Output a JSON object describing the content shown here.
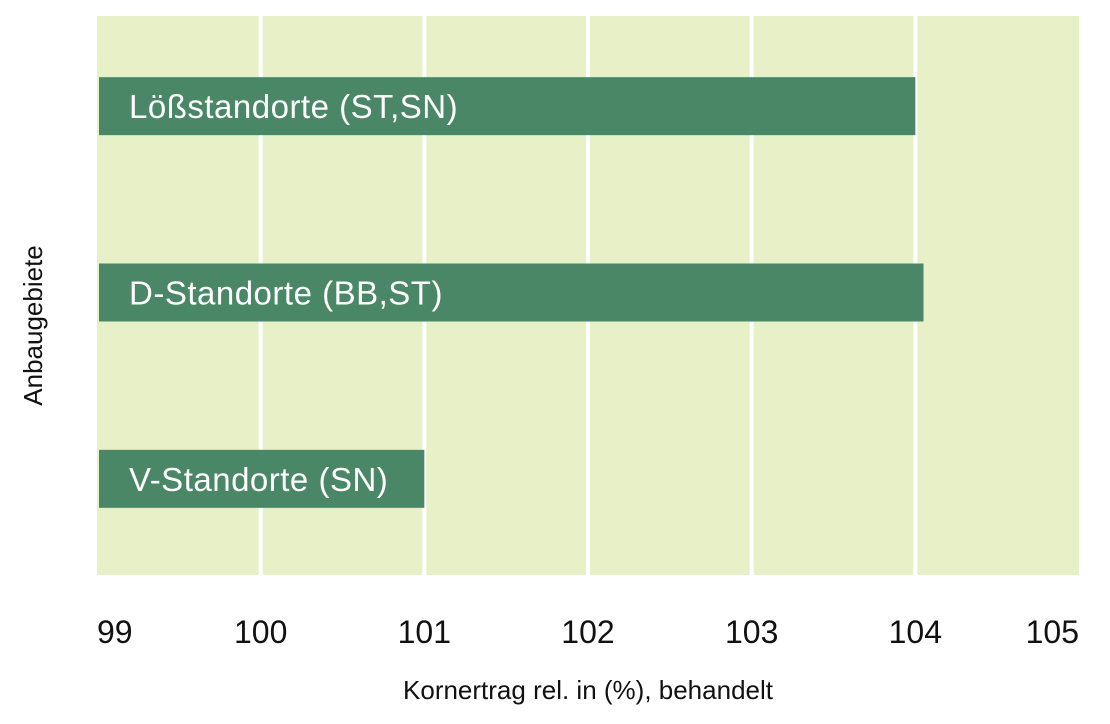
{
  "chart_data": {
    "type": "bar",
    "orientation": "horizontal",
    "xlabel": "Kornertrag rel. in (%), behandelt",
    "ylabel": "Anbaugebiete",
    "xlim": [
      99,
      105
    ],
    "xticks": [
      "99",
      "100",
      "101",
      "102",
      "103",
      "104",
      "105"
    ],
    "categories": [
      "Lößstandorte (ST,SN)",
      "D-Standorte (BB,ST)",
      "V-Standorte (SN)"
    ],
    "values": [
      104.0,
      104.05,
      101.0
    ],
    "grid": true,
    "legend": "none"
  },
  "colors": {
    "plot_background": "#e8f0c8",
    "bar": "#4a8766",
    "gridline": "#ffffff",
    "bar_text": "#ffffff",
    "axis_text": "#111111"
  }
}
